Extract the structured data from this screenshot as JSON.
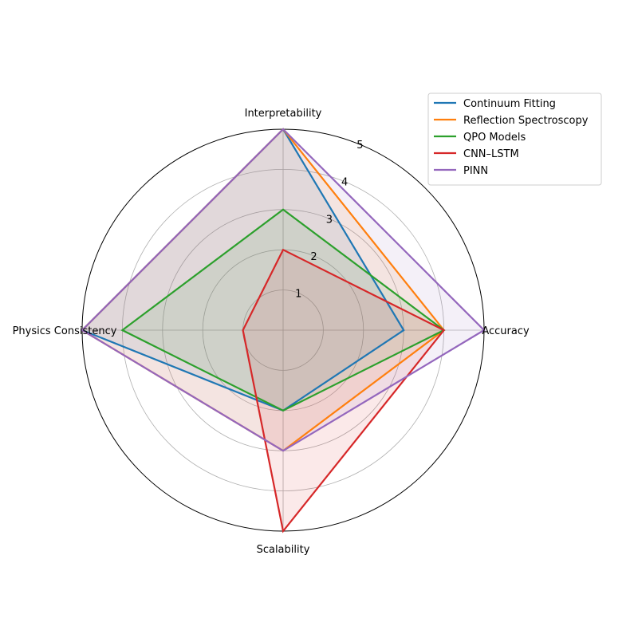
{
  "chart_data": {
    "type": "radar",
    "axes": [
      "Interpretability",
      "Accuracy",
      "Scalability",
      "Physics Consistency"
    ],
    "rlim": [
      0,
      5
    ],
    "rticks": [
      1,
      2,
      3,
      4,
      5
    ],
    "grid": true,
    "legend_position": "top-right",
    "series": [
      {
        "name": "Continuum Fitting",
        "color": "#1f77b4",
        "values": [
          5,
          3,
          2,
          5
        ]
      },
      {
        "name": "Reflection Spectroscopy",
        "color": "#ff7f0e",
        "values": [
          5,
          4,
          3,
          5
        ]
      },
      {
        "name": "QPO Models",
        "color": "#2ca02c",
        "values": [
          3,
          4,
          2,
          4
        ]
      },
      {
        "name": "CNN–LSTM",
        "color": "#d62728",
        "values": [
          2,
          4,
          5,
          1
        ]
      },
      {
        "name": "PINN",
        "color": "#9467bd",
        "values": [
          5,
          5,
          3,
          5
        ]
      }
    ]
  }
}
